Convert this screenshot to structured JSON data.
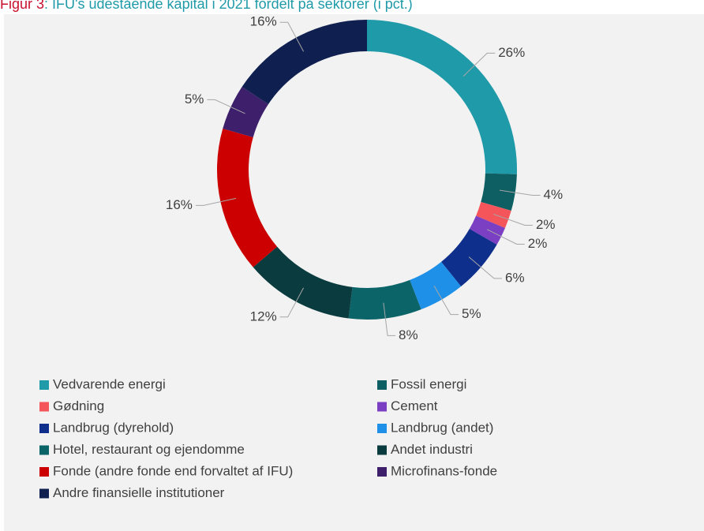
{
  "chart_data": {
    "type": "donut",
    "title_label": "Figur 3",
    "title": ": IFU's udestående kapital i 2021 fordelt på sektorer (i pct.)",
    "categories": [
      "Vedvarende energi",
      "Fossil energi",
      "Gødning",
      "Cement",
      "Landbrug (dyrehold)",
      "Landbrug (andet)",
      "Hotel, restaurant og ejendomme",
      "Andet industri",
      "Fonde (andre fonde end forvaltet af IFU)",
      "Microfinans-fonde",
      "Andre finansielle institutioner"
    ],
    "values": [
      26,
      4,
      2,
      2,
      6,
      5,
      8,
      12,
      16,
      5,
      16
    ],
    "value_labels": [
      "26%",
      "4%",
      "2%",
      "2%",
      "6%",
      "5%",
      "8%",
      "12%",
      "16%",
      "5%",
      "16%"
    ],
    "colors": [
      "#1f9aa8",
      "#0e5f63",
      "#f4555a",
      "#7b3fc4",
      "#0f2f8c",
      "#1e90e8",
      "#0b6468",
      "#0a3b3e",
      "#cc0000",
      "#3e1f6b",
      "#0f1f4f"
    ],
    "legend": "bottom"
  }
}
